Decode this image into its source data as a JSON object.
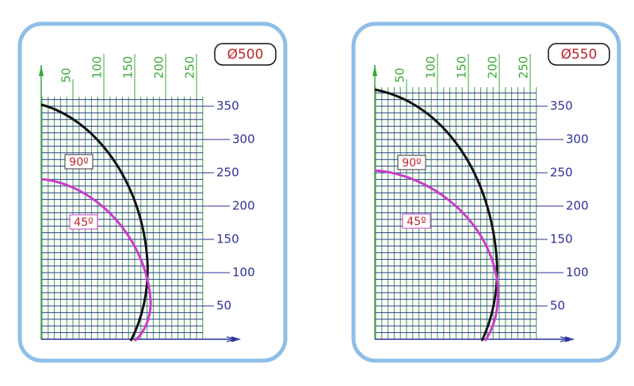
{
  "panels": [
    {
      "title": "Ø500",
      "x_ticks": [
        50,
        100,
        150,
        200,
        250
      ],
      "y_ticks": [
        350,
        300,
        250,
        200,
        150,
        100,
        50
      ],
      "curve_labels": [
        "90º",
        "45º"
      ]
    },
    {
      "title": "Ø550",
      "x_ticks": [
        50,
        100,
        150,
        200,
        250
      ],
      "y_ticks": [
        350,
        300,
        250,
        200,
        150,
        100,
        50
      ],
      "curve_labels": [
        "90º",
        "45º"
      ]
    }
  ]
}
